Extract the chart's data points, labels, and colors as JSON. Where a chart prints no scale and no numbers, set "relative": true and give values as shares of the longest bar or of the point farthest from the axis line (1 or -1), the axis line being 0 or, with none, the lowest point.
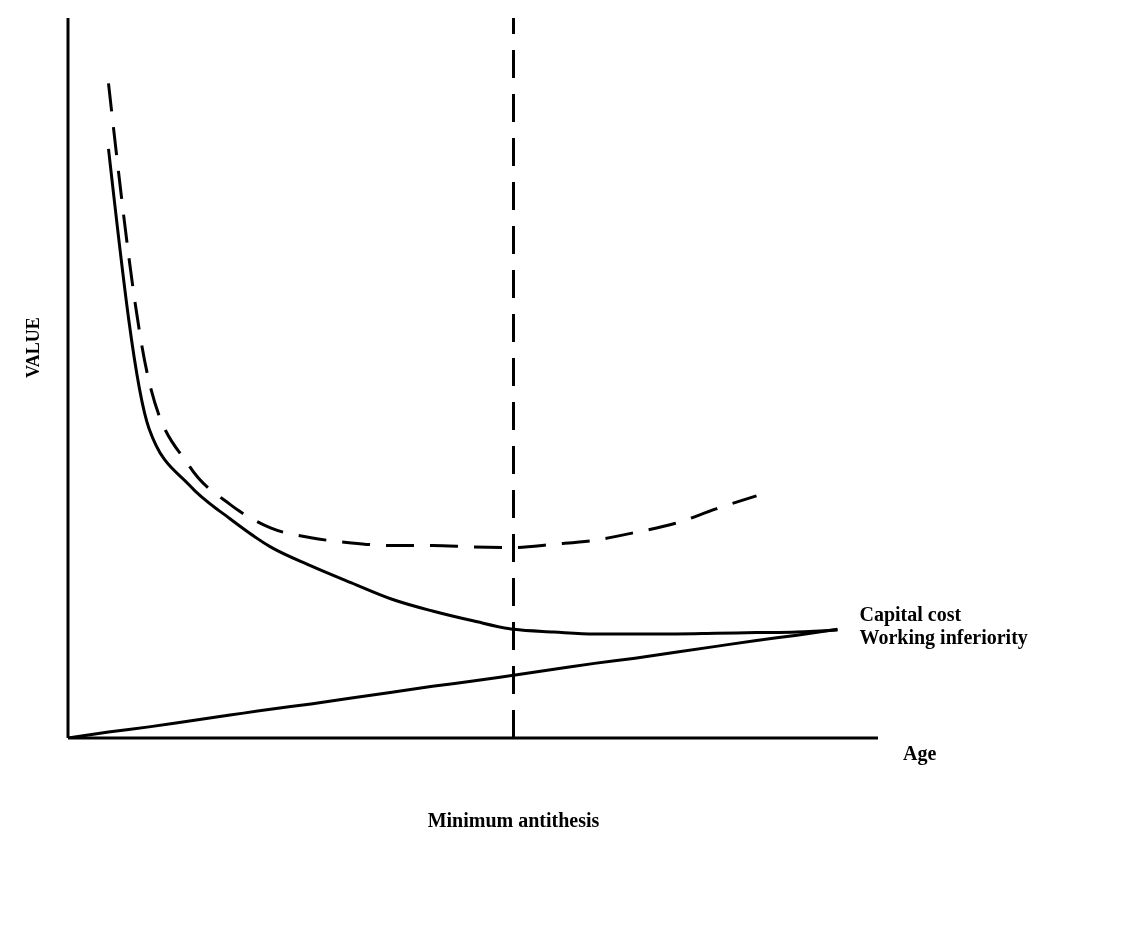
{
  "chart_data": {
    "type": "line",
    "relative": true,
    "xlabel": "Age",
    "ylabel": "VALUE",
    "tick_labels": false,
    "marker": "none",
    "categories": [
      null,
      null,
      null,
      null,
      null,
      null,
      null,
      null,
      null,
      null,
      null,
      null,
      null,
      null,
      null,
      null,
      null,
      null,
      null,
      null,
      null
    ],
    "series": [
      {
        "color": "#000000",
        "line_style": "dashed",
        "values": [
          null,
          1,
          0.545,
          0.415,
          0.357,
          0.321,
          0.306,
          0.298,
          0.294,
          0.294,
          0.292,
          0.291,
          0.296,
          0.302,
          0.314,
          0.328,
          0.35,
          0.37,
          null,
          null,
          null
        ]
      },
      {
        "name": "Working inferiority",
        "color": "#000000",
        "line_style": "solid",
        "values": [
          null,
          0.9,
          0.473,
          0.386,
          0.335,
          0.292,
          0.263,
          0.237,
          0.212,
          0.194,
          0.179,
          0.166,
          0.162,
          0.159,
          0.159,
          0.159,
          0.16,
          0.161,
          0.162,
          0.165,
          null
        ]
      },
      {
        "name": "Capital cost",
        "color": "#000000",
        "line_style": "solid",
        "values": [
          0,
          0.009,
          0.017,
          0.026,
          0.035,
          0.044,
          0.052,
          0.061,
          0.07,
          0.079,
          0.087,
          0.096,
          0.105,
          0.114,
          0.122,
          0.131,
          0.14,
          0.149,
          0.157,
          0.166,
          null
        ]
      }
    ],
    "ref_lines": [
      {
        "axis": "x",
        "label": "Minimum antithesis",
        "color": "#000000",
        "line_style": "dashed"
      }
    ]
  }
}
